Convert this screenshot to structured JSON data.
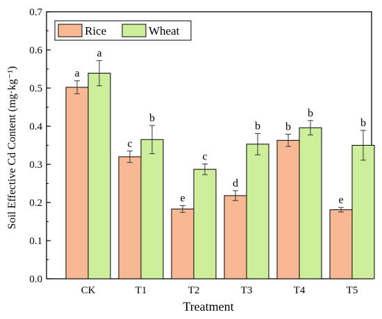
{
  "chart_data": {
    "type": "bar",
    "title": "",
    "xlabel": "Treatment",
    "ylabel": "Soil Effective Cd Content (mg·kg⁻¹)",
    "categories": [
      "CK",
      "T1",
      "T2",
      "T3",
      "T4",
      "T5"
    ],
    "ylim": [
      0,
      0.7
    ],
    "yticks": [
      "0.0",
      "0.1",
      "0.2",
      "0.3",
      "0.4",
      "0.5",
      "0.6",
      "0.7"
    ],
    "grid": false,
    "legend_placement": "top-left",
    "error_bars": true,
    "series": [
      {
        "name": "Rice",
        "color": "#F7B893",
        "values": [
          0.502,
          0.32,
          0.183,
          0.218,
          0.363,
          0.181
        ],
        "errors": [
          0.017,
          0.015,
          0.009,
          0.013,
          0.016,
          0.006
        ],
        "letters": [
          "a",
          "c",
          "e",
          "d",
          "b",
          "e"
        ]
      },
      {
        "name": "Wheat",
        "color": "#CDEE9A",
        "values": [
          0.539,
          0.365,
          0.287,
          0.353,
          0.396,
          0.35
        ],
        "errors": [
          0.033,
          0.037,
          0.014,
          0.028,
          0.019,
          0.039
        ],
        "letters": [
          "a",
          "b",
          "c",
          "b",
          "b",
          "b"
        ]
      }
    ]
  }
}
